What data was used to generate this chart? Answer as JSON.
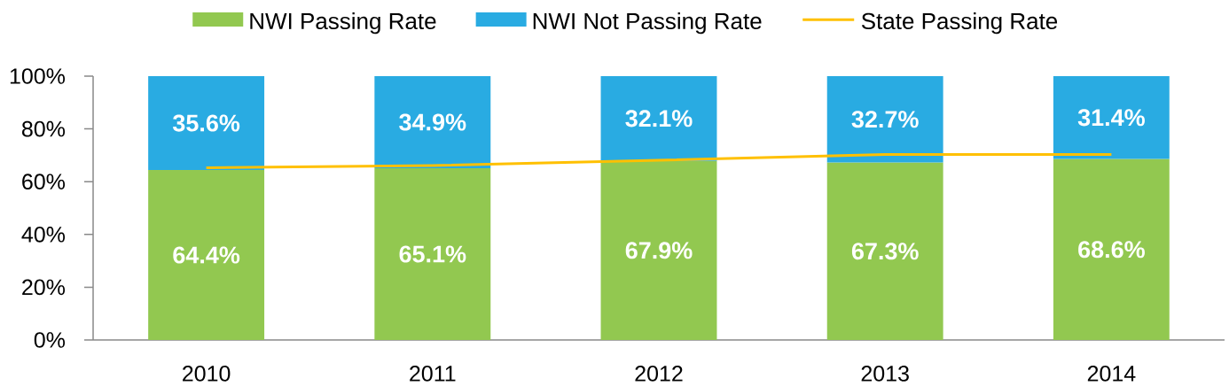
{
  "chart_data": {
    "type": "bar",
    "stacked": true,
    "categories": [
      "2010",
      "2011",
      "2012",
      "2013",
      "2014"
    ],
    "series": [
      {
        "name": "NWI Passing Rate",
        "color": "#92C850",
        "values": [
          64.4,
          65.1,
          67.9,
          67.3,
          68.6
        ],
        "value_labels": [
          "64.4%",
          "65.1%",
          "67.9%",
          "67.3%",
          "68.6%"
        ]
      },
      {
        "name": "NWI Not Passing Rate",
        "color": "#29ABE2",
        "values": [
          35.6,
          34.9,
          32.1,
          32.7,
          31.4
        ],
        "value_labels": [
          "35.6%",
          "34.9%",
          "32.1%",
          "32.7%",
          "31.4%"
        ]
      },
      {
        "name": "State Passing Rate",
        "type": "line",
        "color": "#FFC000",
        "values": [
          65.3,
          66.1,
          68.1,
          70.3,
          70.3
        ]
      }
    ],
    "ylim": [
      0,
      100
    ],
    "yticks": [
      {
        "value": 0,
        "label": "0%"
      },
      {
        "value": 20,
        "label": "20%"
      },
      {
        "value": 40,
        "label": "40%"
      },
      {
        "value": 60,
        "label": "60%"
      },
      {
        "value": 80,
        "label": "80%"
      },
      {
        "value": 100,
        "label": "100%"
      }
    ],
    "legend": "top"
  }
}
